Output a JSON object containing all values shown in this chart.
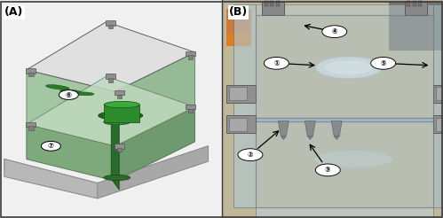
{
  "figure_width": 4.99,
  "figure_height": 2.46,
  "dpi": 100,
  "panel_A_label": "(A)",
  "panel_B_label": "(B)",
  "background_color": "#ffffff",
  "border_color": "#3a3a3a",
  "label_fontsize": 9,
  "panel_split": 0.502,
  "outer_border_linewidth": 1.2,
  "panel_A_bg": "#e8ede8",
  "panel_B_bg": "#c8bfb0",
  "cad_green_transparent": "#a8c8a8",
  "cad_green_dark": "#2d7a2d",
  "cad_top_gray": "#dcdcdc",
  "cad_base_gray": "#c0c0c0"
}
